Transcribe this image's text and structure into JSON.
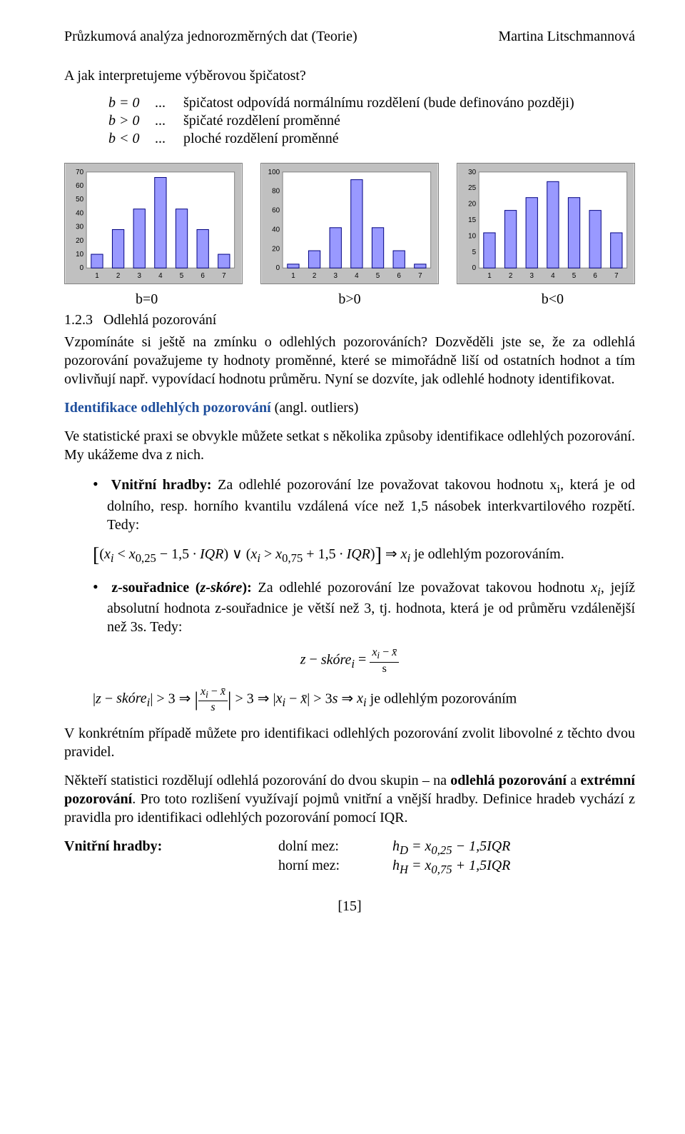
{
  "header": {
    "left": "Průzkumová analýza jednorozměrných dat (Teorie)",
    "right": "Martina Litschmannová"
  },
  "intro_question": "A jak interpretujeme výběrovou špičatost?",
  "definitions": [
    {
      "cond": "b = 0",
      "dots": "...",
      "text": "špičatost odpovídá normálnímu rozdělení (bude definováno později)"
    },
    {
      "cond": "b > 0",
      "dots": "...",
      "text": "špičaté rozdělení proměnné"
    },
    {
      "cond": "b < 0",
      "dots": "...",
      "text": "ploché rozdělení proměnné"
    }
  ],
  "charts": [
    {
      "label": "b=0",
      "x": [
        1,
        2,
        3,
        4,
        5,
        6,
        7
      ],
      "y": [
        10,
        28,
        43,
        66,
        43,
        28,
        10
      ],
      "ylim": [
        0,
        70
      ],
      "ystep": 10,
      "bar_fill": "#9999ff",
      "bar_stroke": "#000080",
      "bg": "#c0c0c0",
      "panel": "#ffffff"
    },
    {
      "label": "b>0",
      "x": [
        1,
        2,
        3,
        4,
        5,
        6,
        7
      ],
      "y": [
        4,
        18,
        42,
        92,
        42,
        18,
        4
      ],
      "ylim": [
        0,
        100
      ],
      "ystep": 20,
      "bar_fill": "#9999ff",
      "bar_stroke": "#000080",
      "bg": "#c0c0c0",
      "panel": "#ffffff"
    },
    {
      "label": "b<0",
      "x": [
        1,
        2,
        3,
        4,
        5,
        6,
        7
      ],
      "y": [
        11,
        18,
        22,
        27,
        22,
        18,
        11
      ],
      "ylim": [
        0,
        30
      ],
      "ystep": 5,
      "bar_fill": "#9999ff",
      "bar_stroke": "#000080",
      "bg": "#c0c0c0",
      "panel": "#ffffff"
    }
  ],
  "section123_num": "1.2.3",
  "section123_title": "Odlehlá pozorování",
  "para_vzpominate": "Vzpomínáte si ještě na zmínku o odlehlých pozorováních? Dozvěděli jste se, že za odlehlá pozorování považujeme ty hodnoty proměnné, které se mimořádně liší od ostatních hodnot a tím ovlivňují např. vypovídací hodnotu průměru. Nyní se dozvíte, jak odlehlé hodnoty identifikovat.",
  "ident_heading_prefix": "Identifikace odlehlých pozorování ",
  "ident_heading_suffix": "(angl. outliers)",
  "para_praxe": "Ve statistické praxi se obvykle můžete setkat s několika způsoby identifikace odlehlých pozorování. My ukážeme dva z nich.",
  "bullet1_lead": "Vnitřní hradby:",
  "bullet1_text": " Za odlehlé pozorování lze považovat takovou hodnotu x",
  "bullet1_rest": ", která je od dolního, resp. horního kvantilu vzdálená více než 1,5 násobek interkvartilového rozpětí. Tedy:",
  "formula1_lhs": "[(xᵢ < x₀,₂₅ − 1,5 · IQR) ∨ (xᵢ > x₀,₇₅ + 1,5 · IQR)] ⇒ xᵢ",
  "formula1_rhs": " je odlehlým pozorováním.",
  "bullet2_lead": "z-souřadnice (",
  "bullet2_lead_i": "z-skóre",
  "bullet2_lead2": "):",
  "bullet2_text": " Za odlehlé pozorování lze považovat takovou hodnotu ",
  "bullet2_xi": "xᵢ",
  "bullet2_rest": ", jejíž absolutní hodnota z-souřadnice je větší než 3, tj. hodnota, která je od průměru vzdálenější než 3s. Tedy:",
  "formula_zskore_eq": "z − skóreᵢ =",
  "formula_zskore_num": "xᵢ − x̄",
  "formula_zskore_den": "s",
  "formula2_a": "|z − skóreᵢ| > 3 ⇒ ",
  "formula2_frac_num": "xᵢ − x̄",
  "formula2_frac_den": "s",
  "formula2_b": " > 3 ⇒ |xᵢ − x̄| > 3s ⇒ xᵢ",
  "formula2_c": " je odlehlým pozorováním",
  "para_konkretni": "V konkrétním případě můžete pro identifikaci odlehlých pozorování zvolit libovolné z těchto dvou pravidel.",
  "para_nekteri_1": "Někteří statistici rozdělují odlehlá pozorování do dvou skupin – na ",
  "para_nekteri_b1": "odlehlá pozorování",
  "para_nekteri_2": " a ",
  "para_nekteri_b2": "extrémní pozorování",
  "para_nekteri_3": ". Pro toto rozlišení využívají pojmů vnitřní a vnější hradby. Definice hradeb vychází z pravidla pro identifikaci odlehlých pozorování pomocí IQR.",
  "hradby_label": "Vnitřní hradby:",
  "hradby_dolni_l": "dolní mez:",
  "hradby_dolni_r": "h_D = x₀,₂₅ − 1,5IQR",
  "hradby_horni_l": "horní mez:",
  "hradby_horni_r": "h_H = x₀,₇₅ + 1,5IQR",
  "page_num": "[15]"
}
